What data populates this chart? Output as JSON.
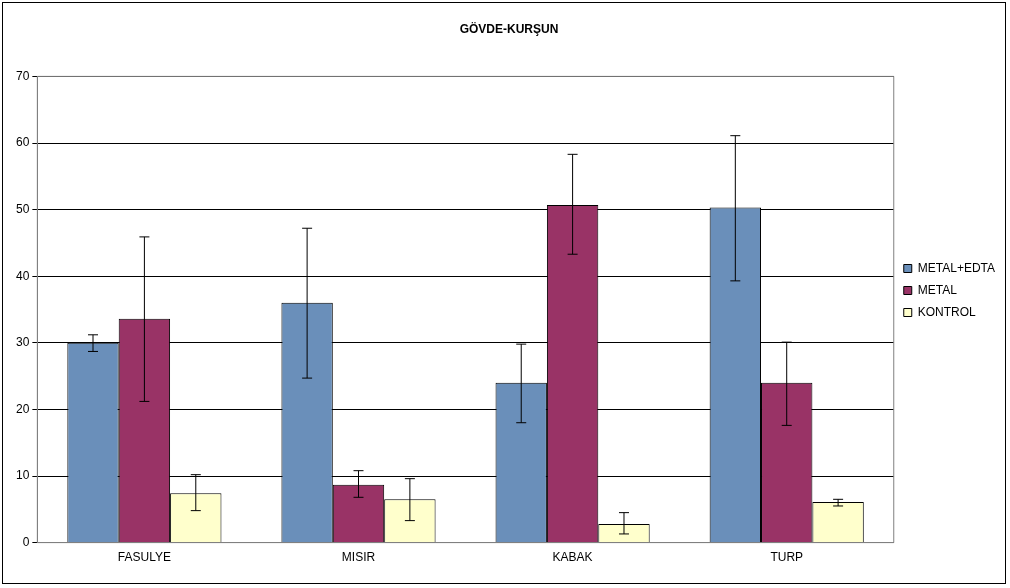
{
  "chart_data": {
    "type": "bar",
    "title": "GÖVDE-KURŞUN",
    "categories": [
      "FASULYE",
      "MISIR",
      "KABAK",
      "TURP"
    ],
    "series": [
      {
        "name": "METAL+EDTA",
        "color": "#6a8fba",
        "values": [
          30,
          36,
          24,
          50.3
        ],
        "errors": [
          [
            28.7,
            31.2
          ],
          [
            24.7,
            47.2
          ],
          [
            18,
            29.8
          ],
          [
            39.3,
            61.1
          ]
        ]
      },
      {
        "name": "METAL",
        "color": "#993366",
        "values": [
          33.6,
          8.7,
          50.7,
          24
        ],
        "errors": [
          [
            21.2,
            45.9
          ],
          [
            6.8,
            10.8
          ],
          [
            43.3,
            58.3
          ],
          [
            17.6,
            30.1
          ]
        ]
      },
      {
        "name": "KONTROL",
        "color": "#ffffcc",
        "values": [
          7.4,
          6.5,
          2.8,
          6.1
        ],
        "errors": [
          [
            4.8,
            10.2
          ],
          [
            3.3,
            9.6
          ],
          [
            1.3,
            4.5
          ],
          [
            5.5,
            6.5
          ]
        ]
      }
    ],
    "ylim": [
      0,
      70
    ],
    "yticks": [
      0,
      10,
      20,
      30,
      40,
      50,
      60,
      70
    ],
    "grid": "y",
    "legend": "right"
  }
}
